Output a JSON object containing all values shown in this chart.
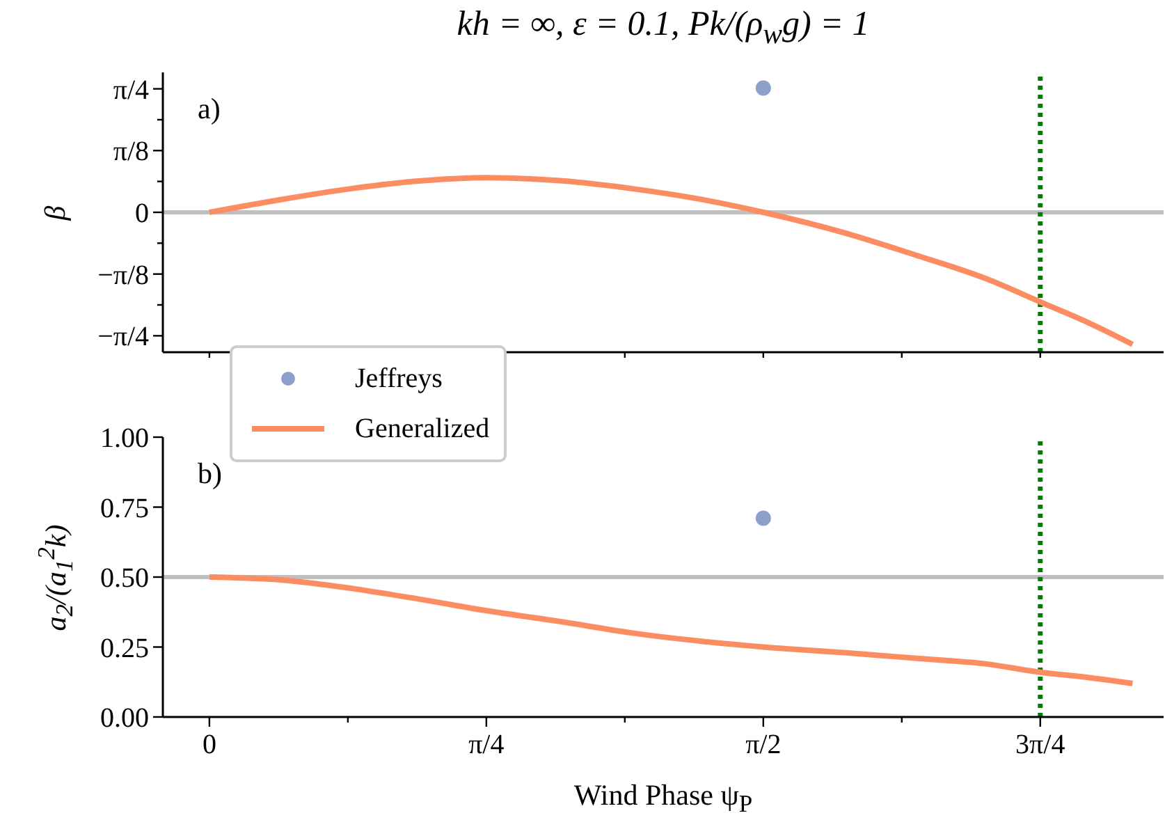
{
  "chart_data": [
    {
      "type": "line",
      "title": "kh = ∞, ε = 0.1, Pk/(ρ$_{w}$g) = 1",
      "ylabel": "β",
      "annotations": [
        "a)"
      ],
      "xlim": [
        -0.132,
        2.706
      ],
      "xticks": [
        {
          "value": 0,
          "label": null
        },
        {
          "value": 0.3927,
          "label": null
        },
        {
          "value": 0.7854,
          "label": null
        },
        {
          "value": 1.1781,
          "label": null
        },
        {
          "value": 1.5708,
          "label": null
        },
        {
          "value": 1.9635,
          "label": null
        },
        {
          "value": 2.3562,
          "label": null
        }
      ],
      "ylim": [
        -0.89,
        0.89
      ],
      "yticks": [
        {
          "value": -0.7854,
          "label": "−π/4"
        },
        {
          "value": -0.589,
          "label": null
        },
        {
          "value": -0.3927,
          "label": "−π/8"
        },
        {
          "value": -0.1963,
          "label": null
        },
        {
          "value": 0,
          "label": "0"
        },
        {
          "value": 0.1963,
          "label": null
        },
        {
          "value": 0.3927,
          "label": "π/8"
        },
        {
          "value": 0.589,
          "label": null
        },
        {
          "value": 0.7854,
          "label": "π/4"
        }
      ],
      "tick_labels": "y",
      "grid": false,
      "series": [
        {
          "type": "scatter",
          "color": "#8da0cb",
          "x": [
            1.5708
          ],
          "values": [
            0.79
          ]
        },
        {
          "color": "#fc8d62",
          "x": [
            0,
            0.2,
            0.4,
            0.6,
            0.785,
            1.0,
            1.2,
            1.4,
            1.5708,
            1.8,
            2.0,
            2.2,
            2.356,
            2.5,
            2.618
          ],
          "values": [
            0,
            0.08,
            0.15,
            0.2,
            0.22,
            0.2,
            0.15,
            0.08,
            0,
            -0.13,
            -0.27,
            -0.42,
            -0.57,
            -0.71,
            -0.84
          ]
        }
      ],
      "ref_lines": [
        {
          "axis": "y",
          "value": 0,
          "color": "#bfbfbf",
          "line_style": "solid"
        },
        {
          "axis": "x",
          "value": 2.3562,
          "color": "#008000",
          "line_style": "dotted"
        }
      ]
    },
    {
      "type": "line",
      "xlabel": "Wind Phase ψ$_{P}$",
      "ylabel": "a$_{2}$/(a$_{1}$$^{2}$k)",
      "annotations": [
        "b)"
      ],
      "xlim": [
        -0.132,
        2.706
      ],
      "xticks": [
        {
          "value": 0,
          "label": "0"
        },
        {
          "value": 0.3927,
          "label": null
        },
        {
          "value": 0.7854,
          "label": "π/4"
        },
        {
          "value": 1.1781,
          "label": null
        },
        {
          "value": 1.5708,
          "label": "π/2"
        },
        {
          "value": 1.9635,
          "label": null
        },
        {
          "value": 2.3562,
          "label": "3π/4"
        }
      ],
      "ylim": [
        0,
        1
      ],
      "yticks": [
        {
          "value": 0,
          "label": "0.00"
        },
        {
          "value": 0.25,
          "label": "0.25"
        },
        {
          "value": 0.5,
          "label": "0.50"
        },
        {
          "value": 0.75,
          "label": "0.75"
        },
        {
          "value": 1,
          "label": "1.00"
        }
      ],
      "grid": false,
      "legend": "top left",
      "series": [
        {
          "type": "scatter",
          "name": "Jeffreys",
          "color": "#8da0cb",
          "x": [
            1.5708
          ],
          "values": [
            0.71
          ]
        },
        {
          "name": "Generalized",
          "color": "#fc8d62",
          "x": [
            0,
            0.2,
            0.4,
            0.6,
            0.785,
            1.0,
            1.2,
            1.4,
            1.5708,
            1.8,
            2.0,
            2.2,
            2.356,
            2.5,
            2.618
          ],
          "values": [
            0.5,
            0.49,
            0.46,
            0.42,
            0.38,
            0.34,
            0.3,
            0.27,
            0.25,
            0.23,
            0.21,
            0.19,
            0.16,
            0.14,
            0.12
          ]
        }
      ],
      "ref_lines": [
        {
          "axis": "y",
          "value": 0.5,
          "color": "#bfbfbf",
          "line_style": "solid"
        },
        {
          "axis": "x",
          "value": 2.3562,
          "color": "#008000",
          "line_style": "dotted"
        }
      ]
    }
  ]
}
